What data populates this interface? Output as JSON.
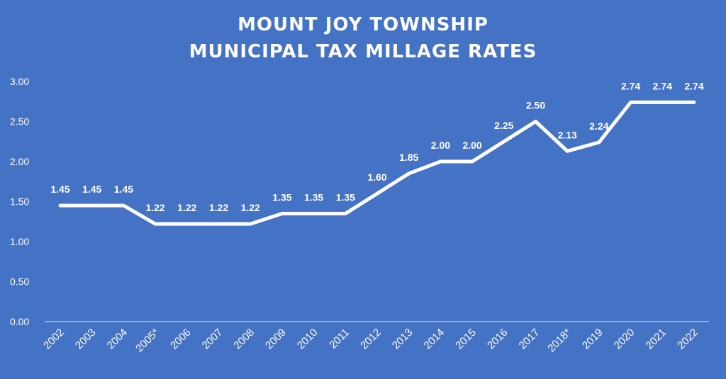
{
  "title_lines": [
    "MOUNT JOY TOWNSHIP",
    "MUNICIPAL TAX MILLAGE RATES"
  ],
  "colors": {
    "background": "#4472c4",
    "line": "#ffffff",
    "text": "#ffffff"
  },
  "chart_data": {
    "type": "line",
    "title": "MOUNT JOY TOWNSHIP MUNICIPAL TAX MILLAGE RATES",
    "categories": [
      "2002",
      "2003",
      "2004",
      "2005*",
      "2006",
      "2007",
      "2008",
      "2009",
      "2010",
      "2011",
      "2012",
      "2013",
      "2014",
      "2015",
      "2016",
      "2017",
      "2018*",
      "2019",
      "2020",
      "2021",
      "2022"
    ],
    "values": [
      1.45,
      1.45,
      1.45,
      1.22,
      1.22,
      1.22,
      1.22,
      1.35,
      1.35,
      1.35,
      1.6,
      1.85,
      2.0,
      2.0,
      2.25,
      2.5,
      2.13,
      2.24,
      2.74,
      2.74,
      2.74
    ],
    "value_labels": [
      "1.45",
      "1.45",
      "1.45",
      "1.22",
      "1.22",
      "1.22",
      "1.22",
      "1.35",
      "1.35",
      "1.35",
      "1.60",
      "1.85",
      "2.00",
      "2.00",
      "2.25",
      "2.50",
      "2.13",
      "2.24",
      "2.74",
      "2.74",
      "2.74"
    ],
    "y_ticks": [
      "0.00",
      "0.50",
      "1.00",
      "1.50",
      "2.00",
      "2.50",
      "3.00"
    ],
    "ylim": [
      0,
      3
    ],
    "xlabel": "",
    "ylabel": "",
    "grid": false,
    "drop_lines": true,
    "legend": "none"
  }
}
